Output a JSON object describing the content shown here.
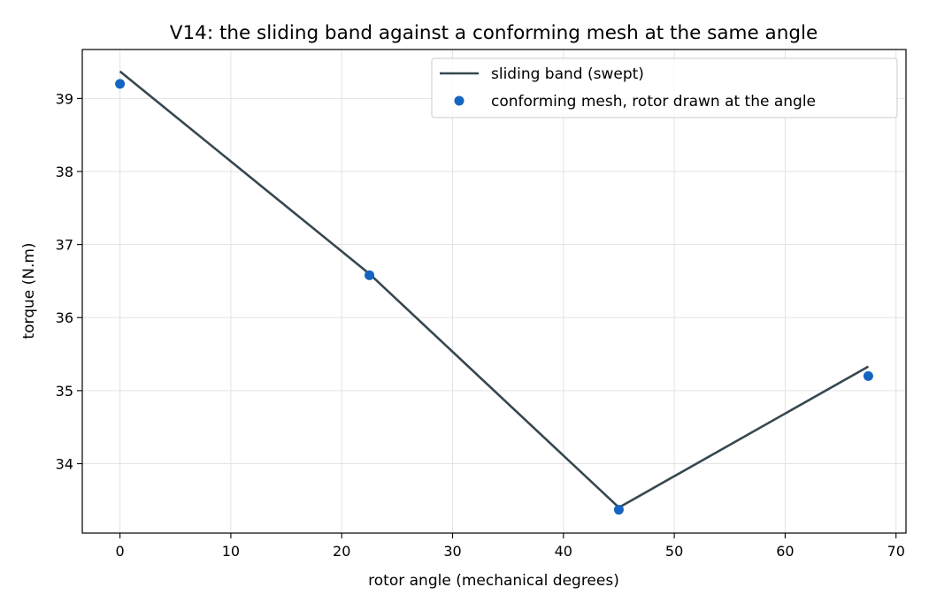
{
  "chart_data": {
    "type": "line",
    "title": "V14: the sliding band against a conforming mesh at the same angle",
    "xlabel": "rotor angle (mechanical degrees)",
    "ylabel": "torque (N.m)",
    "xlim": [
      -3.4,
      70.9
    ],
    "ylim": [
      33.05,
      39.67
    ],
    "xticks": [
      0,
      10,
      20,
      30,
      40,
      50,
      60,
      70
    ],
    "yticks": [
      34,
      35,
      36,
      37,
      38,
      39
    ],
    "grid": true,
    "legend_position": "top-right",
    "series": [
      {
        "name": "sliding band (swept)",
        "kind": "line",
        "color": "#37474f",
        "x": [
          0,
          22.5,
          45,
          67.5
        ],
        "y": [
          39.37,
          36.6,
          33.4,
          35.33
        ]
      },
      {
        "name": "conforming mesh, rotor drawn at the angle",
        "kind": "scatter",
        "color": "#1565c0",
        "x": [
          0,
          22.5,
          45,
          67.5
        ],
        "y": [
          39.2,
          36.58,
          33.37,
          35.2
        ]
      }
    ]
  }
}
